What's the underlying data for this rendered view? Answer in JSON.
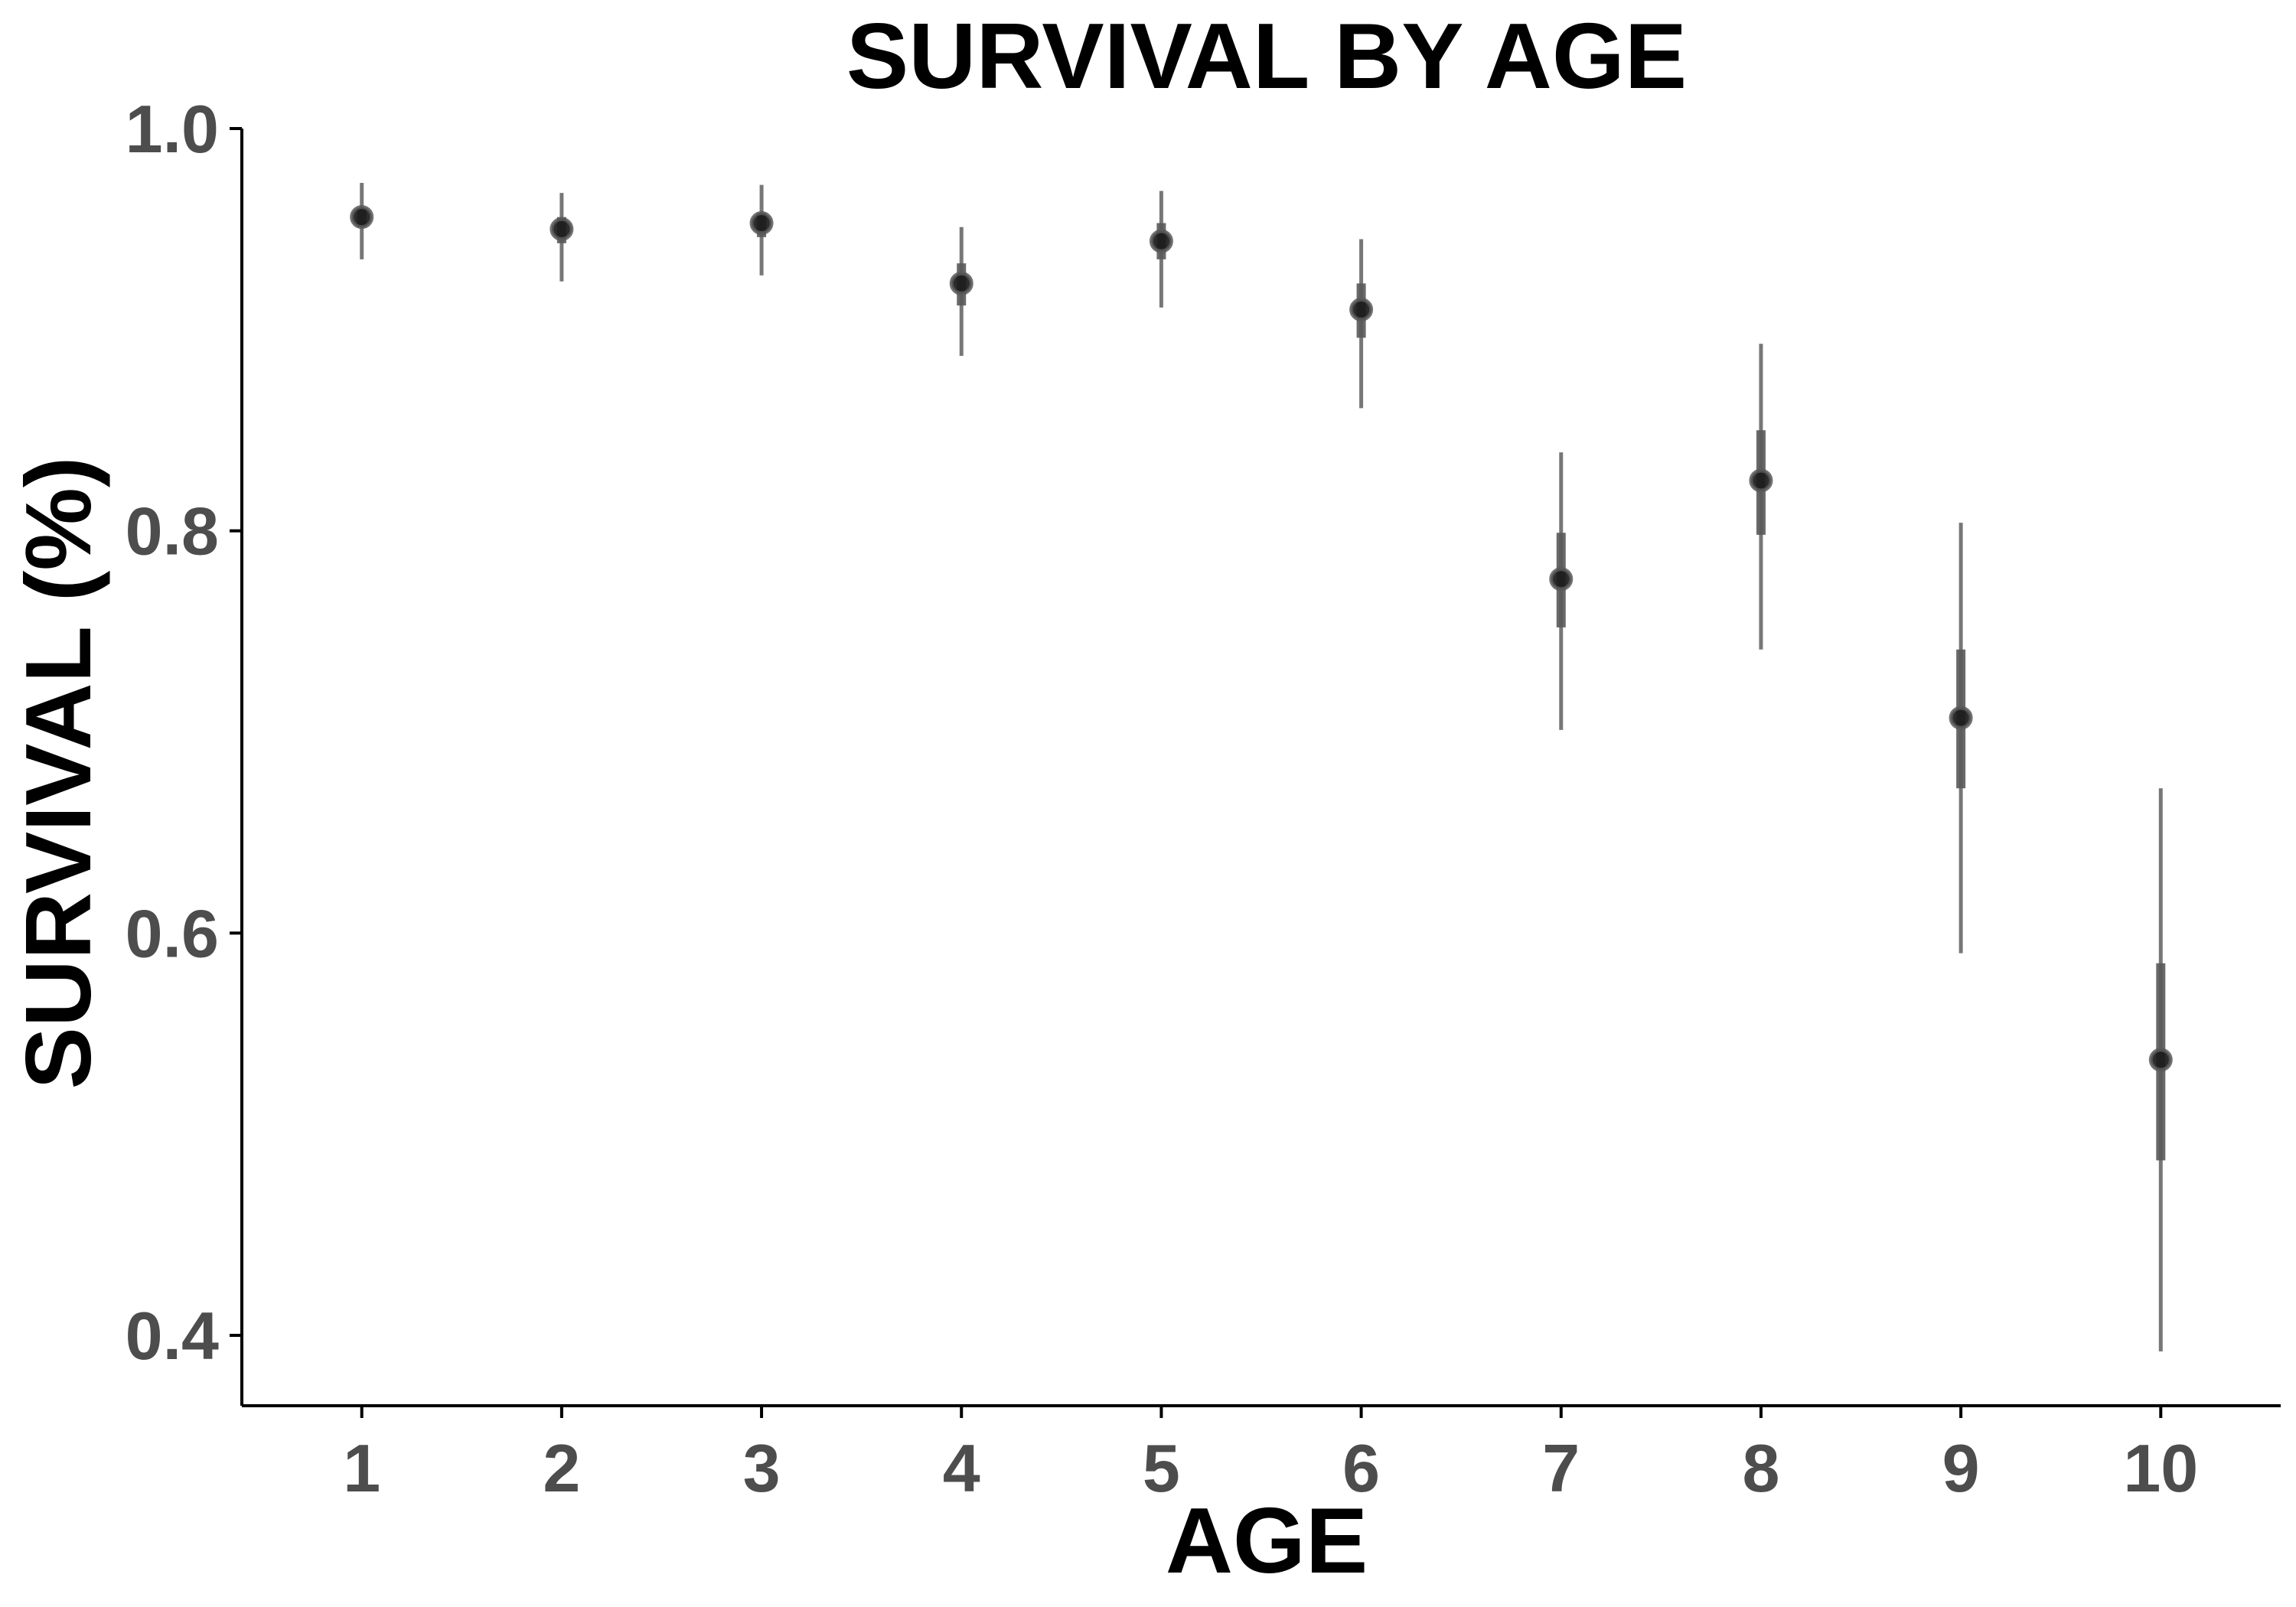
{
  "chart_data": {
    "type": "scatter",
    "title": "SURVIVAL BY AGE",
    "xlabel": "AGE",
    "ylabel": "SURVIVAL (%)",
    "xlim": [
      0.4,
      10.6
    ],
    "ylim": [
      0.365,
      1.0
    ],
    "x_ticks": [
      1,
      2,
      3,
      4,
      5,
      6,
      7,
      8,
      9,
      10
    ],
    "x_tick_labels": [
      "1",
      "2",
      "3",
      "4",
      "5",
      "6",
      "7",
      "8",
      "9",
      "10"
    ],
    "y_ticks": [
      0.4,
      0.6,
      0.8,
      1.0
    ],
    "y_tick_labels": [
      "0.4",
      "0.6",
      "0.8",
      "1.0"
    ],
    "grid": false,
    "legend": "none",
    "colors": {
      "point": "#1a1a1a",
      "interval": "#595959",
      "tick_text": "#4d4d4d",
      "axis": "#000000"
    },
    "series": [
      {
        "x": [
          1,
          2,
          3,
          4,
          5,
          6,
          7,
          8,
          9,
          10
        ],
        "y": [
          0.956,
          0.95,
          0.953,
          0.923,
          0.944,
          0.91,
          0.776,
          0.825,
          0.707,
          0.537
        ],
        "inner_low": [
          0.951,
          0.943,
          0.946,
          0.912,
          0.935,
          0.896,
          0.752,
          0.798,
          0.672,
          0.487
        ],
        "inner_high": [
          0.96,
          0.956,
          0.958,
          0.933,
          0.953,
          0.923,
          0.799,
          0.85,
          0.741,
          0.585
        ],
        "outer_low": [
          0.935,
          0.924,
          0.927,
          0.887,
          0.911,
          0.861,
          0.701,
          0.741,
          0.59,
          0.392
        ],
        "outer_high": [
          0.973,
          0.968,
          0.972,
          0.951,
          0.969,
          0.945,
          0.839,
          0.893,
          0.804,
          0.672
        ]
      }
    ]
  }
}
